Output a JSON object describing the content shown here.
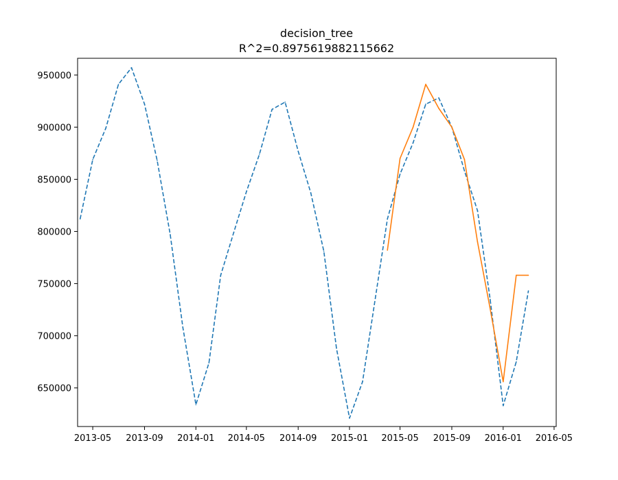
{
  "chart_data": {
    "type": "line",
    "title": "decision_tree",
    "subtitle": "R^2=0.8975619882115662",
    "xlabel": "",
    "ylabel": "",
    "x_axis": "date",
    "xlim": [
      "2013-03-26",
      "2016-05-06"
    ],
    "ylim": [
      613000,
      966000
    ],
    "x_ticks": [
      "2013-05",
      "2013-09",
      "2014-01",
      "2014-05",
      "2014-09",
      "2015-01",
      "2015-05",
      "2015-09",
      "2016-01",
      "2016-05"
    ],
    "y_ticks": [
      650000,
      700000,
      750000,
      800000,
      850000,
      900000,
      950000
    ],
    "grid": false,
    "legend": "none",
    "series": [
      {
        "style": "dashed",
        "color": "#1f77b4",
        "points": [
          {
            "x": "2013-04-01",
            "y": 812000
          },
          {
            "x": "2013-05-01",
            "y": 869000
          },
          {
            "x": "2013-06-01",
            "y": 899000
          },
          {
            "x": "2013-07-01",
            "y": 941000
          },
          {
            "x": "2013-08-01",
            "y": 957000
          },
          {
            "x": "2013-09-01",
            "y": 922000
          },
          {
            "x": "2013-10-01",
            "y": 868000
          },
          {
            "x": "2013-11-01",
            "y": 797000
          },
          {
            "x": "2013-12-01",
            "y": 708000
          },
          {
            "x": "2014-01-01",
            "y": 634000
          },
          {
            "x": "2014-02-01",
            "y": 674000
          },
          {
            "x": "2014-03-01",
            "y": 758000
          },
          {
            "x": "2014-04-01",
            "y": 799000
          },
          {
            "x": "2014-05-01",
            "y": 838000
          },
          {
            "x": "2014-06-01",
            "y": 874000
          },
          {
            "x": "2014-07-01",
            "y": 917000
          },
          {
            "x": "2014-08-01",
            "y": 924000
          },
          {
            "x": "2014-09-01",
            "y": 877000
          },
          {
            "x": "2014-10-01",
            "y": 837000
          },
          {
            "x": "2014-11-01",
            "y": 781000
          },
          {
            "x": "2014-12-01",
            "y": 688000
          },
          {
            "x": "2015-01-01",
            "y": 621000
          },
          {
            "x": "2015-02-01",
            "y": 656000
          },
          {
            "x": "2015-03-01",
            "y": 730000
          },
          {
            "x": "2015-04-01",
            "y": 812000
          },
          {
            "x": "2015-05-01",
            "y": 855000
          },
          {
            "x": "2015-06-01",
            "y": 885000
          },
          {
            "x": "2015-07-01",
            "y": 922000
          },
          {
            "x": "2015-08-01",
            "y": 928000
          },
          {
            "x": "2015-09-01",
            "y": 900000
          },
          {
            "x": "2015-10-01",
            "y": 858000
          },
          {
            "x": "2015-11-01",
            "y": 820000
          },
          {
            "x": "2015-12-01",
            "y": 735000
          },
          {
            "x": "2016-01-01",
            "y": 633000
          },
          {
            "x": "2016-02-01",
            "y": 675000
          },
          {
            "x": "2016-03-01",
            "y": 743000
          }
        ]
      },
      {
        "style": "solid",
        "color": "#ff7f0e",
        "points": [
          {
            "x": "2015-04-01",
            "y": 782000
          },
          {
            "x": "2015-05-01",
            "y": 870000
          },
          {
            "x": "2015-06-01",
            "y": 900000
          },
          {
            "x": "2015-07-01",
            "y": 941000
          },
          {
            "x": "2015-08-01",
            "y": 918000
          },
          {
            "x": "2015-09-01",
            "y": 900000
          },
          {
            "x": "2015-10-01",
            "y": 869000
          },
          {
            "x": "2015-11-01",
            "y": 790000
          },
          {
            "x": "2015-12-01",
            "y": 726000
          },
          {
            "x": "2016-01-01",
            "y": 656000
          },
          {
            "x": "2016-02-01",
            "y": 758000
          },
          {
            "x": "2016-03-01",
            "y": 758000
          }
        ]
      }
    ]
  }
}
